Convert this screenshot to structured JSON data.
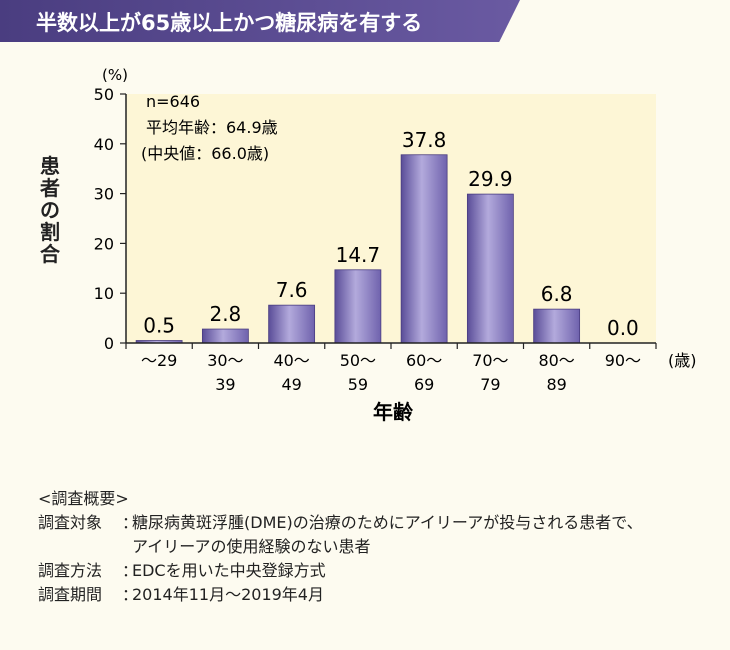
{
  "header": {
    "title": "半数以上が65歳以上かつ糖尿病を有する"
  },
  "chart_data": {
    "type": "bar",
    "categories": [
      "～29",
      "30～39",
      "40～49",
      "50～59",
      "60～69",
      "70～79",
      "80～89",
      "90～"
    ],
    "category_lines": [
      [
        "～29"
      ],
      [
        "30～",
        "39"
      ],
      [
        "40～",
        "49"
      ],
      [
        "50～",
        "59"
      ],
      [
        "60～",
        "69"
      ],
      [
        "70～",
        "79"
      ],
      [
        "80～",
        "89"
      ],
      [
        "90～"
      ]
    ],
    "values": [
      0.5,
      2.8,
      7.6,
      14.7,
      37.8,
      29.9,
      6.8,
      0.0
    ],
    "value_labels": [
      "0.5",
      "2.8",
      "7.6",
      "14.7",
      "37.8",
      "29.9",
      "6.8",
      "0.0"
    ],
    "ylim": [
      0,
      50
    ],
    "yticks": [
      0,
      10,
      20,
      30,
      40,
      50
    ],
    "y_unit": "(%)",
    "x_unit": "(歳)",
    "ylabel": "患者の割合",
    "xlabel": "年齢",
    "annotations": [
      "n=646",
      "平均年齢：64.9歳",
      "(中央値：66.0歳)"
    ],
    "grid": false,
    "colors": {
      "bar": "#8a7ec2",
      "bar_dark": "#5a4d98",
      "bar_light": "#b3aadc",
      "plot_bg": "#fdf6d6"
    }
  },
  "survey": {
    "heading": "<調査概要>",
    "rows": [
      {
        "key": "調査対象",
        "lines": [
          "糖尿病黄斑浮腫(DME)の治療のためにアイリーアが投与される患者で、",
          "アイリーアの使用経験のない患者"
        ]
      },
      {
        "key": "調査方法",
        "lines": [
          "EDCを用いた中央登録方式"
        ]
      },
      {
        "key": "調査期間",
        "lines": [
          "2014年11月～2019年4月"
        ]
      }
    ]
  }
}
